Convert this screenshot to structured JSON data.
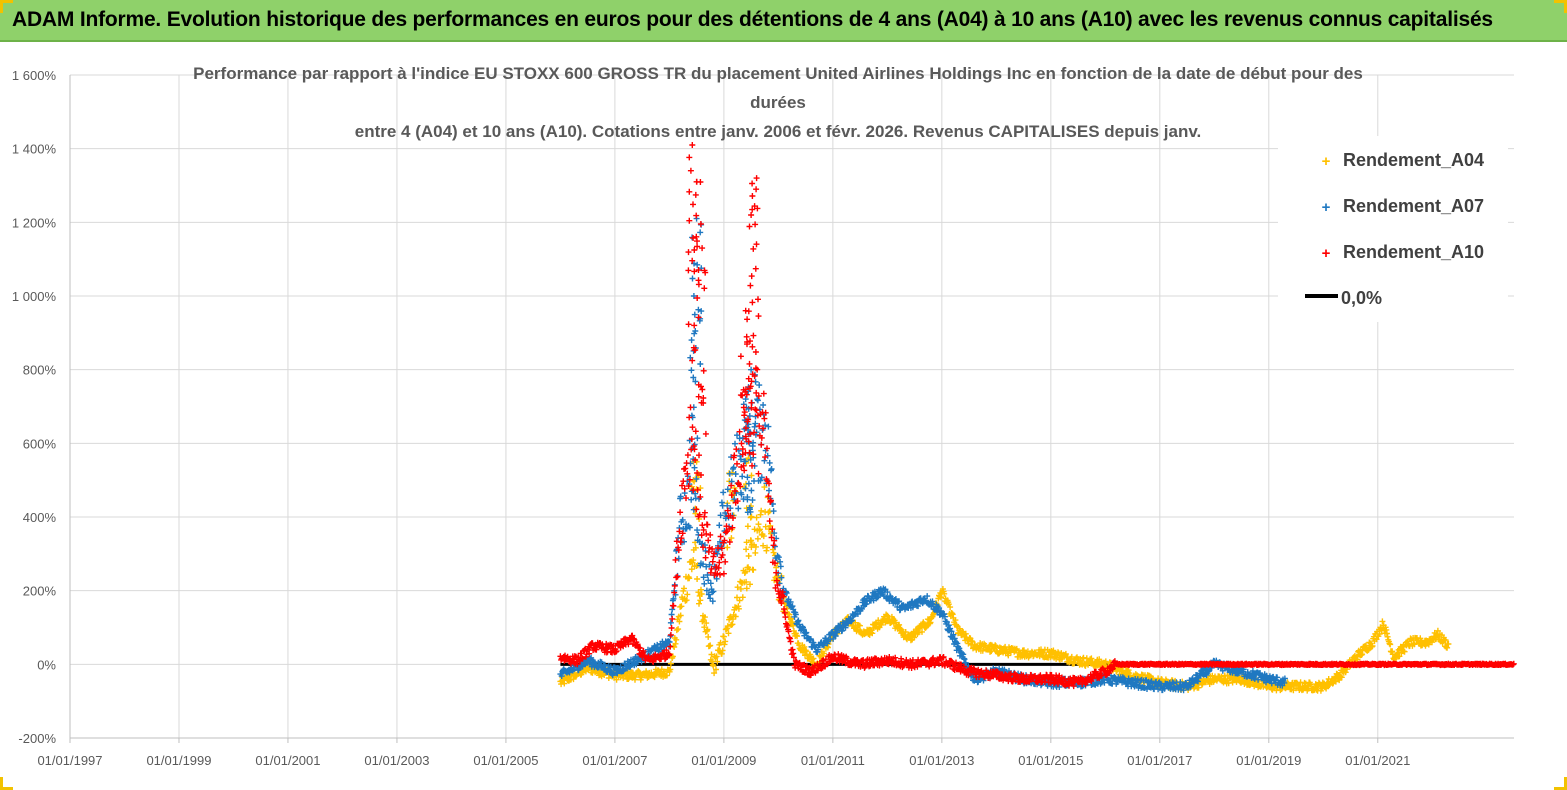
{
  "header": {
    "title": "ADAM Informe. Evolution historique des performances en euros pour des détentions de 4 ans (A04) à 10 ans (A10) avec les revenus connus capitalisés"
  },
  "colors": {
    "a04": "#ffc000",
    "a07": "#1f78c1",
    "a10": "#ff0000",
    "zero": "#000000",
    "header_bg": "#8fd16a"
  },
  "chart_data": {
    "type": "scatter",
    "title_lines": [
      "Performance par rapport à l'indice EU STOXX 600 GROSS TR  du placement United Airlines Holdings Inc en fonction de la date de début pour des",
      "durées",
      "entre 4 (A04) et 10 ans (A10). Cotations entre janv. 2006 et févr. 2026. Revenus CAPITALISES depuis janv."
    ],
    "x_range": [
      1997.0,
      2023.5
    ],
    "x_ticks": [
      "01/01/1997",
      "01/01/1999",
      "01/01/2001",
      "01/01/2003",
      "01/01/2005",
      "01/01/2007",
      "01/01/2009",
      "01/01/2011",
      "01/01/2013",
      "01/01/2015",
      "01/01/2017",
      "01/01/2019",
      "01/01/2021"
    ],
    "ylim": [
      -200,
      1600
    ],
    "y_ticks": [
      "-200%",
      "0%",
      "200%",
      "400%",
      "600%",
      "800%",
      "1 000%",
      "1 200%",
      "1 400%",
      "1 600%"
    ],
    "grid": true,
    "legend": [
      "Rendement_A04",
      "Rendement_A07",
      "Rendement_A10",
      "0,0%"
    ],
    "series": [
      {
        "name": "Rendement_A04",
        "x_start": 2006.0,
        "x_end": 2022.3,
        "anchors": [
          [
            2006.0,
            -50
          ],
          [
            2006.5,
            -10
          ],
          [
            2007.0,
            -30
          ],
          [
            2007.5,
            -30
          ],
          [
            2008.0,
            -20
          ],
          [
            2008.25,
            180
          ],
          [
            2008.45,
            300
          ],
          [
            2008.6,
            150
          ],
          [
            2008.8,
            -10
          ],
          [
            2009.0,
            60
          ],
          [
            2009.3,
            200
          ],
          [
            2009.55,
            300
          ],
          [
            2009.75,
            420
          ],
          [
            2009.95,
            250
          ],
          [
            2010.15,
            150
          ],
          [
            2010.4,
            50
          ],
          [
            2010.7,
            0
          ],
          [
            2011.0,
            80
          ],
          [
            2011.3,
            120
          ],
          [
            2011.6,
            80
          ],
          [
            2012.0,
            130
          ],
          [
            2012.4,
            70
          ],
          [
            2012.8,
            120
          ],
          [
            2013.0,
            200
          ],
          [
            2013.3,
            90
          ],
          [
            2013.6,
            50
          ],
          [
            2014.0,
            40
          ],
          [
            2014.5,
            30
          ],
          [
            2015.0,
            30
          ],
          [
            2015.5,
            10
          ],
          [
            2016.0,
            0
          ],
          [
            2016.5,
            -30
          ],
          [
            2017.0,
            -50
          ],
          [
            2017.5,
            -60
          ],
          [
            2018.0,
            -40
          ],
          [
            2018.5,
            -40
          ],
          [
            2019.0,
            -60
          ],
          [
            2019.5,
            -60
          ],
          [
            2020.0,
            -60
          ],
          [
            2020.3,
            -30
          ],
          [
            2020.6,
            20
          ],
          [
            2020.9,
            60
          ],
          [
            2021.1,
            110
          ],
          [
            2021.3,
            20
          ],
          [
            2021.6,
            60
          ],
          [
            2021.9,
            60
          ],
          [
            2022.1,
            80
          ],
          [
            2022.3,
            50
          ]
        ],
        "spikes": [
          [
            2008.5,
            550
          ],
          [
            2009.15,
            520
          ],
          [
            2009.45,
            560
          ]
        ]
      },
      {
        "name": "Rendement_A07",
        "x_start": 2006.0,
        "x_end": 2019.3,
        "anchors": [
          [
            2006.0,
            -30
          ],
          [
            2006.5,
            10
          ],
          [
            2007.0,
            -20
          ],
          [
            2007.5,
            20
          ],
          [
            2008.0,
            60
          ],
          [
            2008.2,
            380
          ],
          [
            2008.45,
            500
          ],
          [
            2008.6,
            300
          ],
          [
            2008.8,
            200
          ],
          [
            2009.0,
            400
          ],
          [
            2009.3,
            550
          ],
          [
            2009.55,
            600
          ],
          [
            2009.75,
            650
          ],
          [
            2009.95,
            350
          ],
          [
            2010.1,
            200
          ],
          [
            2010.4,
            100
          ],
          [
            2010.7,
            40
          ],
          [
            2011.0,
            80
          ],
          [
            2011.3,
            120
          ],
          [
            2011.6,
            170
          ],
          [
            2011.9,
            200
          ],
          [
            2012.3,
            150
          ],
          [
            2012.7,
            180
          ],
          [
            2013.0,
            140
          ],
          [
            2013.3,
            40
          ],
          [
            2013.6,
            -40
          ],
          [
            2014.0,
            -20
          ],
          [
            2014.5,
            -40
          ],
          [
            2015.0,
            -50
          ],
          [
            2015.5,
            -50
          ],
          [
            2016.0,
            -40
          ],
          [
            2016.5,
            -50
          ],
          [
            2017.0,
            -60
          ],
          [
            2017.5,
            -60
          ],
          [
            2018.0,
            0
          ],
          [
            2018.5,
            -20
          ],
          [
            2019.0,
            -40
          ],
          [
            2019.3,
            -50
          ]
        ],
        "spikes": [
          [
            2008.5,
            1210
          ],
          [
            2008.45,
            1000
          ],
          [
            2009.5,
            800
          ],
          [
            2009.4,
            720
          ]
        ]
      },
      {
        "name": "Rendement_A10",
        "x_start": 2006.0,
        "x_end": 2023.5,
        "anchors": [
          [
            2006.0,
            20
          ],
          [
            2006.3,
            10
          ],
          [
            2006.6,
            50
          ],
          [
            2007.0,
            40
          ],
          [
            2007.3,
            70
          ],
          [
            2007.6,
            10
          ],
          [
            2008.0,
            30
          ],
          [
            2008.2,
            400
          ],
          [
            2008.4,
            650
          ],
          [
            2008.6,
            400
          ],
          [
            2008.8,
            250
          ],
          [
            2009.0,
            300
          ],
          [
            2009.3,
            600
          ],
          [
            2009.55,
            700
          ],
          [
            2009.75,
            600
          ],
          [
            2009.9,
            300
          ],
          [
            2010.1,
            150
          ],
          [
            2010.3,
            0
          ],
          [
            2010.6,
            -20
          ],
          [
            2011.0,
            20
          ],
          [
            2011.5,
            0
          ],
          [
            2012.0,
            10
          ],
          [
            2012.5,
            0
          ],
          [
            2013.0,
            10
          ],
          [
            2013.5,
            -20
          ],
          [
            2014.0,
            -30
          ],
          [
            2014.5,
            -40
          ],
          [
            2015.0,
            -40
          ],
          [
            2015.5,
            -50
          ],
          [
            2016.0,
            -20
          ],
          [
            2016.2,
            0
          ],
          [
            2023.5,
            0
          ]
        ],
        "spikes": [
          [
            2008.42,
            1410
          ],
          [
            2008.5,
            1310
          ],
          [
            2008.6,
            1130
          ],
          [
            2009.6,
            1320
          ],
          [
            2009.5,
            1220
          ],
          [
            2009.4,
            960
          ]
        ]
      },
      {
        "name": "0,0%",
        "x_start": 2006.0,
        "x_end": 2023.5,
        "anchors": [
          [
            2006.0,
            0
          ],
          [
            2023.5,
            0
          ]
        ],
        "spikes": []
      }
    ]
  }
}
